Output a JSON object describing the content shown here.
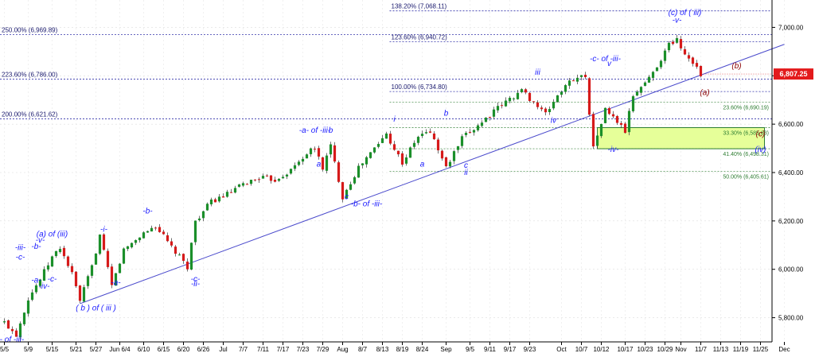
{
  "chart_data": {
    "type": "candlestick",
    "ylim": [
      5700,
      7100
    ],
    "x_index_range": [
      0,
      190
    ],
    "grid": true,
    "y_ticks": [
      {
        "value": 5800,
        "label": "5,800.00"
      },
      {
        "value": 6000,
        "label": "6,000.00"
      },
      {
        "value": 6200,
        "label": "6,200.00"
      },
      {
        "value": 6400,
        "label": "6,400.00"
      },
      {
        "value": 6600,
        "label": "6,600.00"
      },
      {
        "value": 6800,
        "label": "6,800.00"
      },
      {
        "value": 7000,
        "label": "7,000.00"
      }
    ],
    "x_ticks": [
      {
        "i": 0,
        "label": "5/5"
      },
      {
        "i": 6,
        "label": "5/9"
      },
      {
        "i": 12,
        "label": "5/15"
      },
      {
        "i": 18,
        "label": "5/21"
      },
      {
        "i": 23,
        "label": "5/27"
      },
      {
        "i": 29,
        "label": "Jun 6/4"
      },
      {
        "i": 35,
        "label": "6/10"
      },
      {
        "i": 40,
        "label": "6/15"
      },
      {
        "i": 45,
        "label": "6/20"
      },
      {
        "i": 50,
        "label": "6/26"
      },
      {
        "i": 55,
        "label": "Jul"
      },
      {
        "i": 60,
        "label": "7/7"
      },
      {
        "i": 65,
        "label": "7/11"
      },
      {
        "i": 70,
        "label": "7/17"
      },
      {
        "i": 75,
        "label": "7/23"
      },
      {
        "i": 80,
        "label": "7/29"
      },
      {
        "i": 85,
        "label": "Aug"
      },
      {
        "i": 90,
        "label": "8/7"
      },
      {
        "i": 95,
        "label": "8/13"
      },
      {
        "i": 100,
        "label": "8/19"
      },
      {
        "i": 105,
        "label": "8/24"
      },
      {
        "i": 111,
        "label": "Sep"
      },
      {
        "i": 117,
        "label": "9/5"
      },
      {
        "i": 122,
        "label": "9/11"
      },
      {
        "i": 127,
        "label": "9/17"
      },
      {
        "i": 132,
        "label": "9/23"
      },
      {
        "i": 140,
        "label": "Oct"
      },
      {
        "i": 145,
        "label": "10/7"
      },
      {
        "i": 150,
        "label": "10/12"
      },
      {
        "i": 156,
        "label": "10/17"
      },
      {
        "i": 161,
        "label": "10/23"
      },
      {
        "i": 166,
        "label": "10/29"
      },
      {
        "i": 170,
        "label": "Nov"
      },
      {
        "i": 175,
        "label": "11/7"
      },
      {
        "i": 180,
        "label": "11/13"
      },
      {
        "i": 185,
        "label": "11/19"
      },
      {
        "i": 190,
        "label": "11/25"
      },
      {
        "i": 196,
        "label": "Dec"
      }
    ],
    "key_points": [
      {
        "i": 0,
        "v": 5780
      },
      {
        "i": 3,
        "v": 5730
      },
      {
        "i": 6,
        "v": 5880
      },
      {
        "i": 9,
        "v": 5960
      },
      {
        "i": 12,
        "v": 6050
      },
      {
        "i": 14,
        "v": 6090
      },
      {
        "i": 17,
        "v": 5980
      },
      {
        "i": 19,
        "v": 5870
      },
      {
        "i": 22,
        "v": 6010
      },
      {
        "i": 24,
        "v": 6140
      },
      {
        "i": 27,
        "v": 5930
      },
      {
        "i": 30,
        "v": 6080
      },
      {
        "i": 35,
        "v": 6150
      },
      {
        "i": 38,
        "v": 6180
      },
      {
        "i": 42,
        "v": 6090
      },
      {
        "i": 46,
        "v": 6010
      },
      {
        "i": 48,
        "v": 6200
      },
      {
        "i": 52,
        "v": 6280
      },
      {
        "i": 56,
        "v": 6310
      },
      {
        "i": 60,
        "v": 6350
      },
      {
        "i": 64,
        "v": 6380
      },
      {
        "i": 68,
        "v": 6370
      },
      {
        "i": 72,
        "v": 6410
      },
      {
        "i": 76,
        "v": 6480
      },
      {
        "i": 78,
        "v": 6500
      },
      {
        "i": 80,
        "v": 6420
      },
      {
        "i": 82,
        "v": 6510
      },
      {
        "i": 85,
        "v": 6300
      },
      {
        "i": 89,
        "v": 6420
      },
      {
        "i": 93,
        "v": 6500
      },
      {
        "i": 96,
        "v": 6560
      },
      {
        "i": 100,
        "v": 6440
      },
      {
        "i": 104,
        "v": 6550
      },
      {
        "i": 107,
        "v": 6570
      },
      {
        "i": 111,
        "v": 6420
      },
      {
        "i": 115,
        "v": 6540
      },
      {
        "i": 120,
        "v": 6610
      },
      {
        "i": 125,
        "v": 6680
      },
      {
        "i": 130,
        "v": 6740
      },
      {
        "i": 133,
        "v": 6690
      },
      {
        "i": 136,
        "v": 6640
      },
      {
        "i": 139,
        "v": 6720
      },
      {
        "i": 143,
        "v": 6790
      },
      {
        "i": 146,
        "v": 6800
      },
      {
        "i": 148,
        "v": 6500
      },
      {
        "i": 151,
        "v": 6660
      },
      {
        "i": 154,
        "v": 6610
      },
      {
        "i": 156,
        "v": 6570
      },
      {
        "i": 158,
        "v": 6720
      },
      {
        "i": 162,
        "v": 6790
      },
      {
        "i": 165,
        "v": 6870
      },
      {
        "i": 167,
        "v": 6930
      },
      {
        "i": 169,
        "v": 6950
      },
      {
        "i": 171,
        "v": 6890
      },
      {
        "i": 173,
        "v": 6860
      },
      {
        "i": 175,
        "v": 6807
      }
    ],
    "current_price": {
      "value": 6807.25,
      "label": "6,807.25"
    },
    "fib_levels_left": [
      {
        "value": 7068.11,
        "label": "138.20% (7,068.11)",
        "x_from": 98
      },
      {
        "value": 6969.89,
        "label": "250.00% (6,969.89)",
        "x_from": 0
      },
      {
        "value": 6940.72,
        "label": "123.60% (6,940.72)",
        "x_from": 98
      },
      {
        "value": 6786.0,
        "label": "223.60% (6,786.00)",
        "x_from": 0
      },
      {
        "value": 6734.8,
        "label": "100.00% (6,734.80)",
        "x_from": 98
      },
      {
        "value": 6621.62,
        "label": "200.00% (6,621.62)",
        "x_from": 0
      }
    ],
    "fib_levels_right": [
      {
        "value": 6690.19,
        "label": "23.60% (6,690.19)"
      },
      {
        "value": 6585.63,
        "label": "33.30% (6,585.63)"
      },
      {
        "value": 6498.31,
        "label": "41.40% (6,498.31)"
      },
      {
        "value": 6405.61,
        "label": "50.00% (6,405.61)"
      }
    ],
    "target_box": {
      "from_i": 149,
      "to_i": 191,
      "v_top": 6585.63,
      "v_bottom": 6498.31
    },
    "trendline": {
      "i1": 19,
      "v1": 5858,
      "i2": 196,
      "v2": 6930
    },
    "wave_labels": [
      {
        "text": "-b- of -iii-",
        "i": 1,
        "v": 5700,
        "color": "blue"
      },
      {
        "text": "(a) of (iii)",
        "i": 12,
        "v": 6135,
        "color": "blue"
      },
      {
        "text": "-iii-",
        "i": 4,
        "v": 6080,
        "color": "blue"
      },
      {
        "text": "-v-",
        "i": 9,
        "v": 6110,
        "color": "blue"
      },
      {
        "text": "-b-",
        "i": 8,
        "v": 6085,
        "color": "blue"
      },
      {
        "text": "-c-",
        "i": 4,
        "v": 6040,
        "color": "blue"
      },
      {
        "text": "-a-",
        "i": 8,
        "v": 5945,
        "color": "blue"
      },
      {
        "text": "-c-",
        "i": 12,
        "v": 5950,
        "color": "blue"
      },
      {
        "text": "-iv-",
        "i": 10,
        "v": 5920,
        "color": "blue"
      },
      {
        "text": "( b ) of ( iii )",
        "i": 23,
        "v": 5830,
        "color": "blue"
      },
      {
        "text": "-i-",
        "i": 25,
        "v": 6155,
        "color": "blue"
      },
      {
        "text": "-a-",
        "i": 28,
        "v": 5935,
        "color": "blue"
      },
      {
        "text": "-b-",
        "i": 36,
        "v": 6230,
        "color": "blue"
      },
      {
        "text": "-c-",
        "i": 48,
        "v": 5950,
        "color": "blue"
      },
      {
        "text": "-ii-",
        "i": 48,
        "v": 5930,
        "color": "blue"
      },
      {
        "text": "-a- of -iii-",
        "i": 78,
        "v": 6565,
        "color": "blue"
      },
      {
        "text": "b",
        "i": 82,
        "v": 6565,
        "color": "blue"
      },
      {
        "text": "a",
        "i": 79,
        "v": 6425,
        "color": "blue"
      },
      {
        "text": "c",
        "i": 86,
        "v": 6290,
        "color": "blue"
      },
      {
        "text": "-b- of -iii-",
        "i": 91,
        "v": 6260,
        "color": "blue"
      },
      {
        "text": "i",
        "i": 98,
        "v": 6610,
        "color": "blue"
      },
      {
        "text": "a",
        "i": 105,
        "v": 6425,
        "color": "blue"
      },
      {
        "text": "b",
        "i": 111,
        "v": 6635,
        "color": "blue"
      },
      {
        "text": "c",
        "i": 116,
        "v": 6420,
        "color": "blue"
      },
      {
        "text": "ii",
        "i": 116,
        "v": 6390,
        "color": "blue"
      },
      {
        "text": "iii",
        "i": 134,
        "v": 6805,
        "color": "blue"
      },
      {
        "text": "iv",
        "i": 138,
        "v": 6605,
        "color": "blue"
      },
      {
        "text": "-c- of -iii-",
        "i": 151,
        "v": 6860,
        "color": "blue"
      },
      {
        "text": "v",
        "i": 152,
        "v": 6840,
        "color": "blue"
      },
      {
        "text": "-iv-",
        "i": 153,
        "v": 6485,
        "color": "blue"
      },
      {
        "text": "(c) of ( iii)",
        "i": 171,
        "v": 7050,
        "color": "blue"
      },
      {
        "text": "-v-",
        "i": 169,
        "v": 7020,
        "color": "blue"
      },
      {
        "text": "(b)",
        "i": 184,
        "v": 6830,
        "color": "red"
      },
      {
        "text": "(a)",
        "i": 176,
        "v": 6720,
        "color": "red"
      },
      {
        "text": "(c)",
        "i": 190,
        "v": 6550,
        "color": "red"
      },
      {
        "text": "(iv)",
        "i": 190,
        "v": 6485,
        "color": "blue"
      }
    ]
  }
}
